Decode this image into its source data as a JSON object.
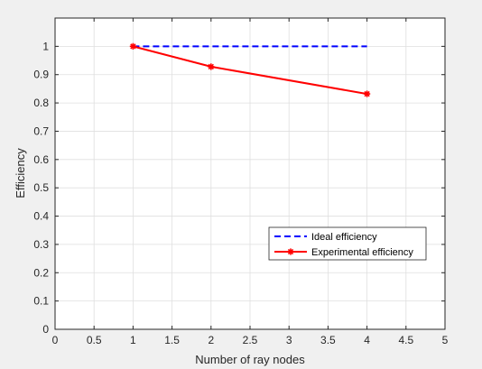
{
  "chart_data": {
    "type": "line",
    "xlabel": "Number of ray nodes",
    "ylabel": "Efficiency",
    "xlim": [
      0,
      5
    ],
    "ylim": [
      0,
      1.1
    ],
    "x_ticks": [
      "0",
      "0.5",
      "1",
      "1.5",
      "2",
      "2.5",
      "3",
      "3.5",
      "4",
      "4.5",
      "5"
    ],
    "y_ticks": [
      "0",
      "0.1",
      "0.2",
      "0.3",
      "0.4",
      "0.5",
      "0.6",
      "0.7",
      "0.8",
      "0.9",
      "1"
    ],
    "grid": true,
    "legend_position": "bottom-right",
    "series": [
      {
        "name": "Ideal efficiency",
        "x": [
          1,
          2,
          4
        ],
        "y": [
          1,
          1,
          1
        ],
        "color": "#0000ff",
        "line_style": "dashed",
        "marker": "none"
      },
      {
        "name": "Experimental efficiency",
        "x": [
          1,
          2,
          4
        ],
        "y": [
          1,
          0.928,
          0.832
        ],
        "color": "#ff0000",
        "line_style": "solid",
        "marker": "asterisk"
      }
    ]
  }
}
